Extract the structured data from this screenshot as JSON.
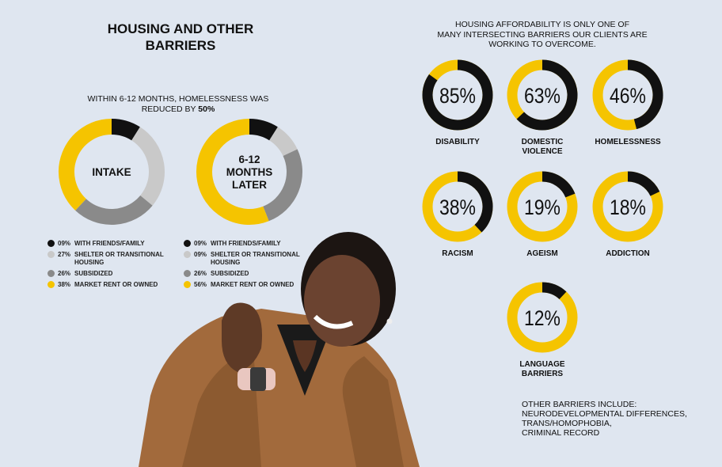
{
  "title_lines": [
    "HOUSING AND OTHER",
    "BARRIERS"
  ],
  "subtitle": {
    "prefix": "WITHIN 6-12 MONTHS, HOMELESSNESS WAS REDUCED BY ",
    "bold": "50%"
  },
  "right_title_lines": [
    "HOUSING AFFORDABILITY IS ONLY ONE OF",
    "MANY INTERSECTING BARRIERS OUR CLIENTS ARE",
    "WORKING TO OVERCOME."
  ],
  "colors": {
    "black": "#111111",
    "light_gray": "#c9c9c9",
    "dark_gray": "#8a8a8a",
    "yellow": "#f5c400",
    "background": "#dfe6f0"
  },
  "chart_data": [
    {
      "type": "pie",
      "variant": "donut",
      "center_label": [
        "INTAKE"
      ],
      "slices": [
        {
          "label": "WITH FRIENDS/FAMILY",
          "pct_label": "09%",
          "value": 9,
          "color": "#111111"
        },
        {
          "label": "SHELTER OR TRANSITIONAL HOUSING",
          "pct_label": "27%",
          "value": 27,
          "color": "#c9c9c9"
        },
        {
          "label": "SUBSIDIZED",
          "pct_label": "26%",
          "value": 26,
          "color": "#8a8a8a"
        },
        {
          "label": "MARKET RENT OR OWNED",
          "pct_label": "38%",
          "value": 38,
          "color": "#f5c400"
        }
      ]
    },
    {
      "type": "pie",
      "variant": "donut",
      "center_label": [
        "6-12",
        "MONTHS",
        "LATER"
      ],
      "slices": [
        {
          "label": "WITH FRIENDS/FAMILY",
          "pct_label": "09%",
          "value": 9,
          "color": "#111111"
        },
        {
          "label": "SHELTER OR TRANSITIONAL HOUSING",
          "pct_label": "09%",
          "value": 9,
          "color": "#c9c9c9"
        },
        {
          "label": "SUBSIDIZED",
          "pct_label": "26%",
          "value": 26,
          "color": "#8a8a8a"
        },
        {
          "label": "MARKET RENT OR OWNED",
          "pct_label": "56%",
          "value": 56,
          "color": "#f5c400"
        }
      ]
    },
    {
      "type": "pie",
      "variant": "progress-rings",
      "items": [
        {
          "label": [
            "DISABILITY"
          ],
          "value": 85,
          "text": "85%"
        },
        {
          "label": [
            "DOMESTIC",
            "VIOLENCE"
          ],
          "value": 63,
          "text": "63%"
        },
        {
          "label": [
            "HOMELESSNESS"
          ],
          "value": 46,
          "text": "46%"
        },
        {
          "label": [
            "RACISM"
          ],
          "value": 38,
          "text": "38%"
        },
        {
          "label": [
            "AGEISM"
          ],
          "value": 19,
          "text": "19%"
        },
        {
          "label": [
            "ADDICTION"
          ],
          "value": 18,
          "text": "18%"
        },
        {
          "label": [
            "LANGUAGE",
            "BARRIERS"
          ],
          "value": 12,
          "text": "12%"
        }
      ]
    }
  ],
  "other_barriers": [
    "OTHER BARRIERS INCLUDE:",
    "NEURODEVELOPMENTAL DIFFERENCES,",
    "TRANS/HOMOPHOBIA,",
    "CRIMINAL RECORD"
  ]
}
